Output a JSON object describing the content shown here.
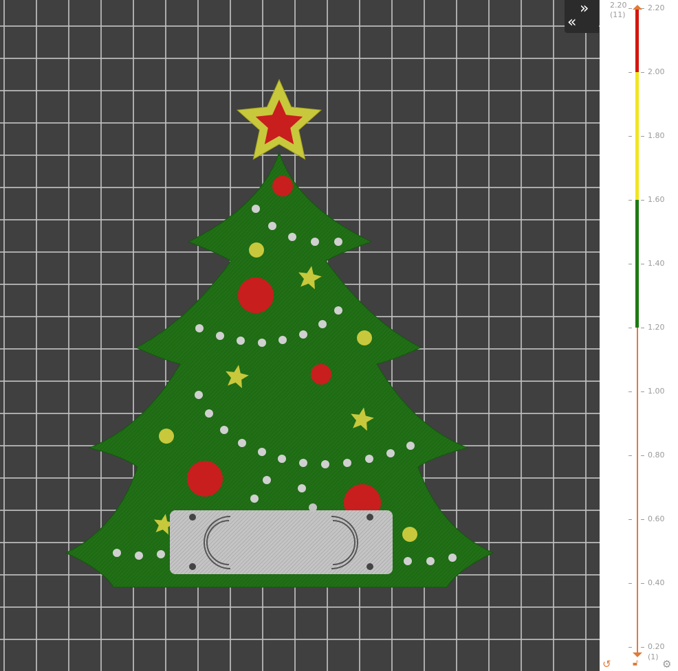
{
  "viewport": {
    "background": "#404040",
    "collapse_button": {
      "expand_icon": "»",
      "collapse_icon": "«"
    }
  },
  "model": {
    "colors": {
      "tree": "#1e6b14",
      "red": "#c81e1e",
      "yellow": "#c8c83c",
      "white": "#d0d0d0",
      "base": "#bdbdbd"
    }
  },
  "layer_slider": {
    "top_value": "2.20",
    "top_layer": "(11)",
    "bottom_value": "0.20",
    "bottom_layer": "(1)",
    "ticks": [
      "2.20",
      "2.00",
      "1.80",
      "1.60",
      "1.40",
      "1.20",
      "1.00",
      "0.80",
      "0.60",
      "0.40",
      "0.20"
    ],
    "color_bands": [
      {
        "from": 2.0,
        "to": 2.2,
        "color": "#d4160f"
      },
      {
        "from": 1.6,
        "to": 2.0,
        "color": "#f0e620"
      },
      {
        "from": 1.2,
        "to": 1.6,
        "color": "#1e7a14"
      }
    ],
    "track_color": "#e07b39",
    "icons": {
      "reset": "undo-icon",
      "lock": "unlock-icon",
      "settings": "gear-icon"
    }
  }
}
